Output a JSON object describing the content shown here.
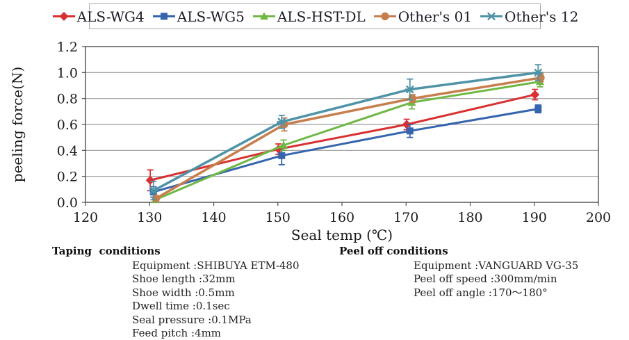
{
  "chart_data": {
    "type": "line",
    "title": "",
    "xlabel": "Seal temp (℃)",
    "ylabel": "peeling force(N)",
    "xlim": [
      120,
      200
    ],
    "ylim": [
      0.0,
      1.2
    ],
    "x_ticks": [
      120,
      130,
      140,
      150,
      160,
      170,
      180,
      190,
      200
    ],
    "y_ticks": [
      0.0,
      0.2,
      0.4,
      0.6,
      0.8,
      1.0,
      1.2
    ],
    "grid": "horizontal",
    "legend_position": "top",
    "x": [
      130,
      150,
      170,
      190
    ],
    "series": [
      {
        "name": "ALS-WG4",
        "color": "#d93032",
        "marker": "diamond",
        "line_width": 3,
        "x_offset": 0.1,
        "values": [
          0.17,
          0.41,
          0.6,
          0.83
        ],
        "errors": [
          0.08,
          0.04,
          0.04,
          0.04
        ]
      },
      {
        "name": "ALS-WG5",
        "color": "#3565ae",
        "marker": "square",
        "line_width": 3,
        "x_offset": 0.6,
        "values": [
          0.08,
          0.36,
          0.55,
          0.72
        ],
        "errors": [
          0.04,
          0.07,
          0.05,
          0.03
        ]
      },
      {
        "name": "ALS-HST-DL",
        "color": "#6fb844",
        "marker": "triangle",
        "line_width": 3,
        "x_offset": 0.9,
        "values": [
          0.02,
          0.44,
          0.77,
          0.93
        ],
        "errors": [
          0.02,
          0.04,
          0.05,
          0.04
        ]
      },
      {
        "name": "Other's 01",
        "color": "#c77e4c",
        "marker": "circle",
        "line_width": 3.5,
        "x_offset": 1.0,
        "values": [
          0.03,
          0.6,
          0.8,
          0.96
        ],
        "errors": [
          0.02,
          0.05,
          0.03,
          0.03
        ]
      },
      {
        "name": "Other's 12",
        "color": "#4f93a6",
        "marker": "asterisk",
        "line_width": 3.5,
        "x_offset": 0.6,
        "values": [
          0.09,
          0.62,
          0.87,
          1.0
        ],
        "errors": [
          0.07,
          0.05,
          0.08,
          0.06
        ]
      }
    ]
  },
  "conditions": {
    "taping": {
      "title": "Taping  conditions",
      "items": [
        "Equipment :SHIBUYA ETM-480",
        "Shoe length :32mm",
        "Shoe width :0.5mm",
        "Dwell time :0.1sec",
        "Seal pressure :0.1MPa",
        "Feed pitch :4mm"
      ]
    },
    "peel_off": {
      "title": "Peel off conditions",
      "items": [
        "Equipment :VANGUARD VG-35",
        "Peel off speed :300mm/min",
        "Peel off angle :170～180°"
      ]
    }
  }
}
